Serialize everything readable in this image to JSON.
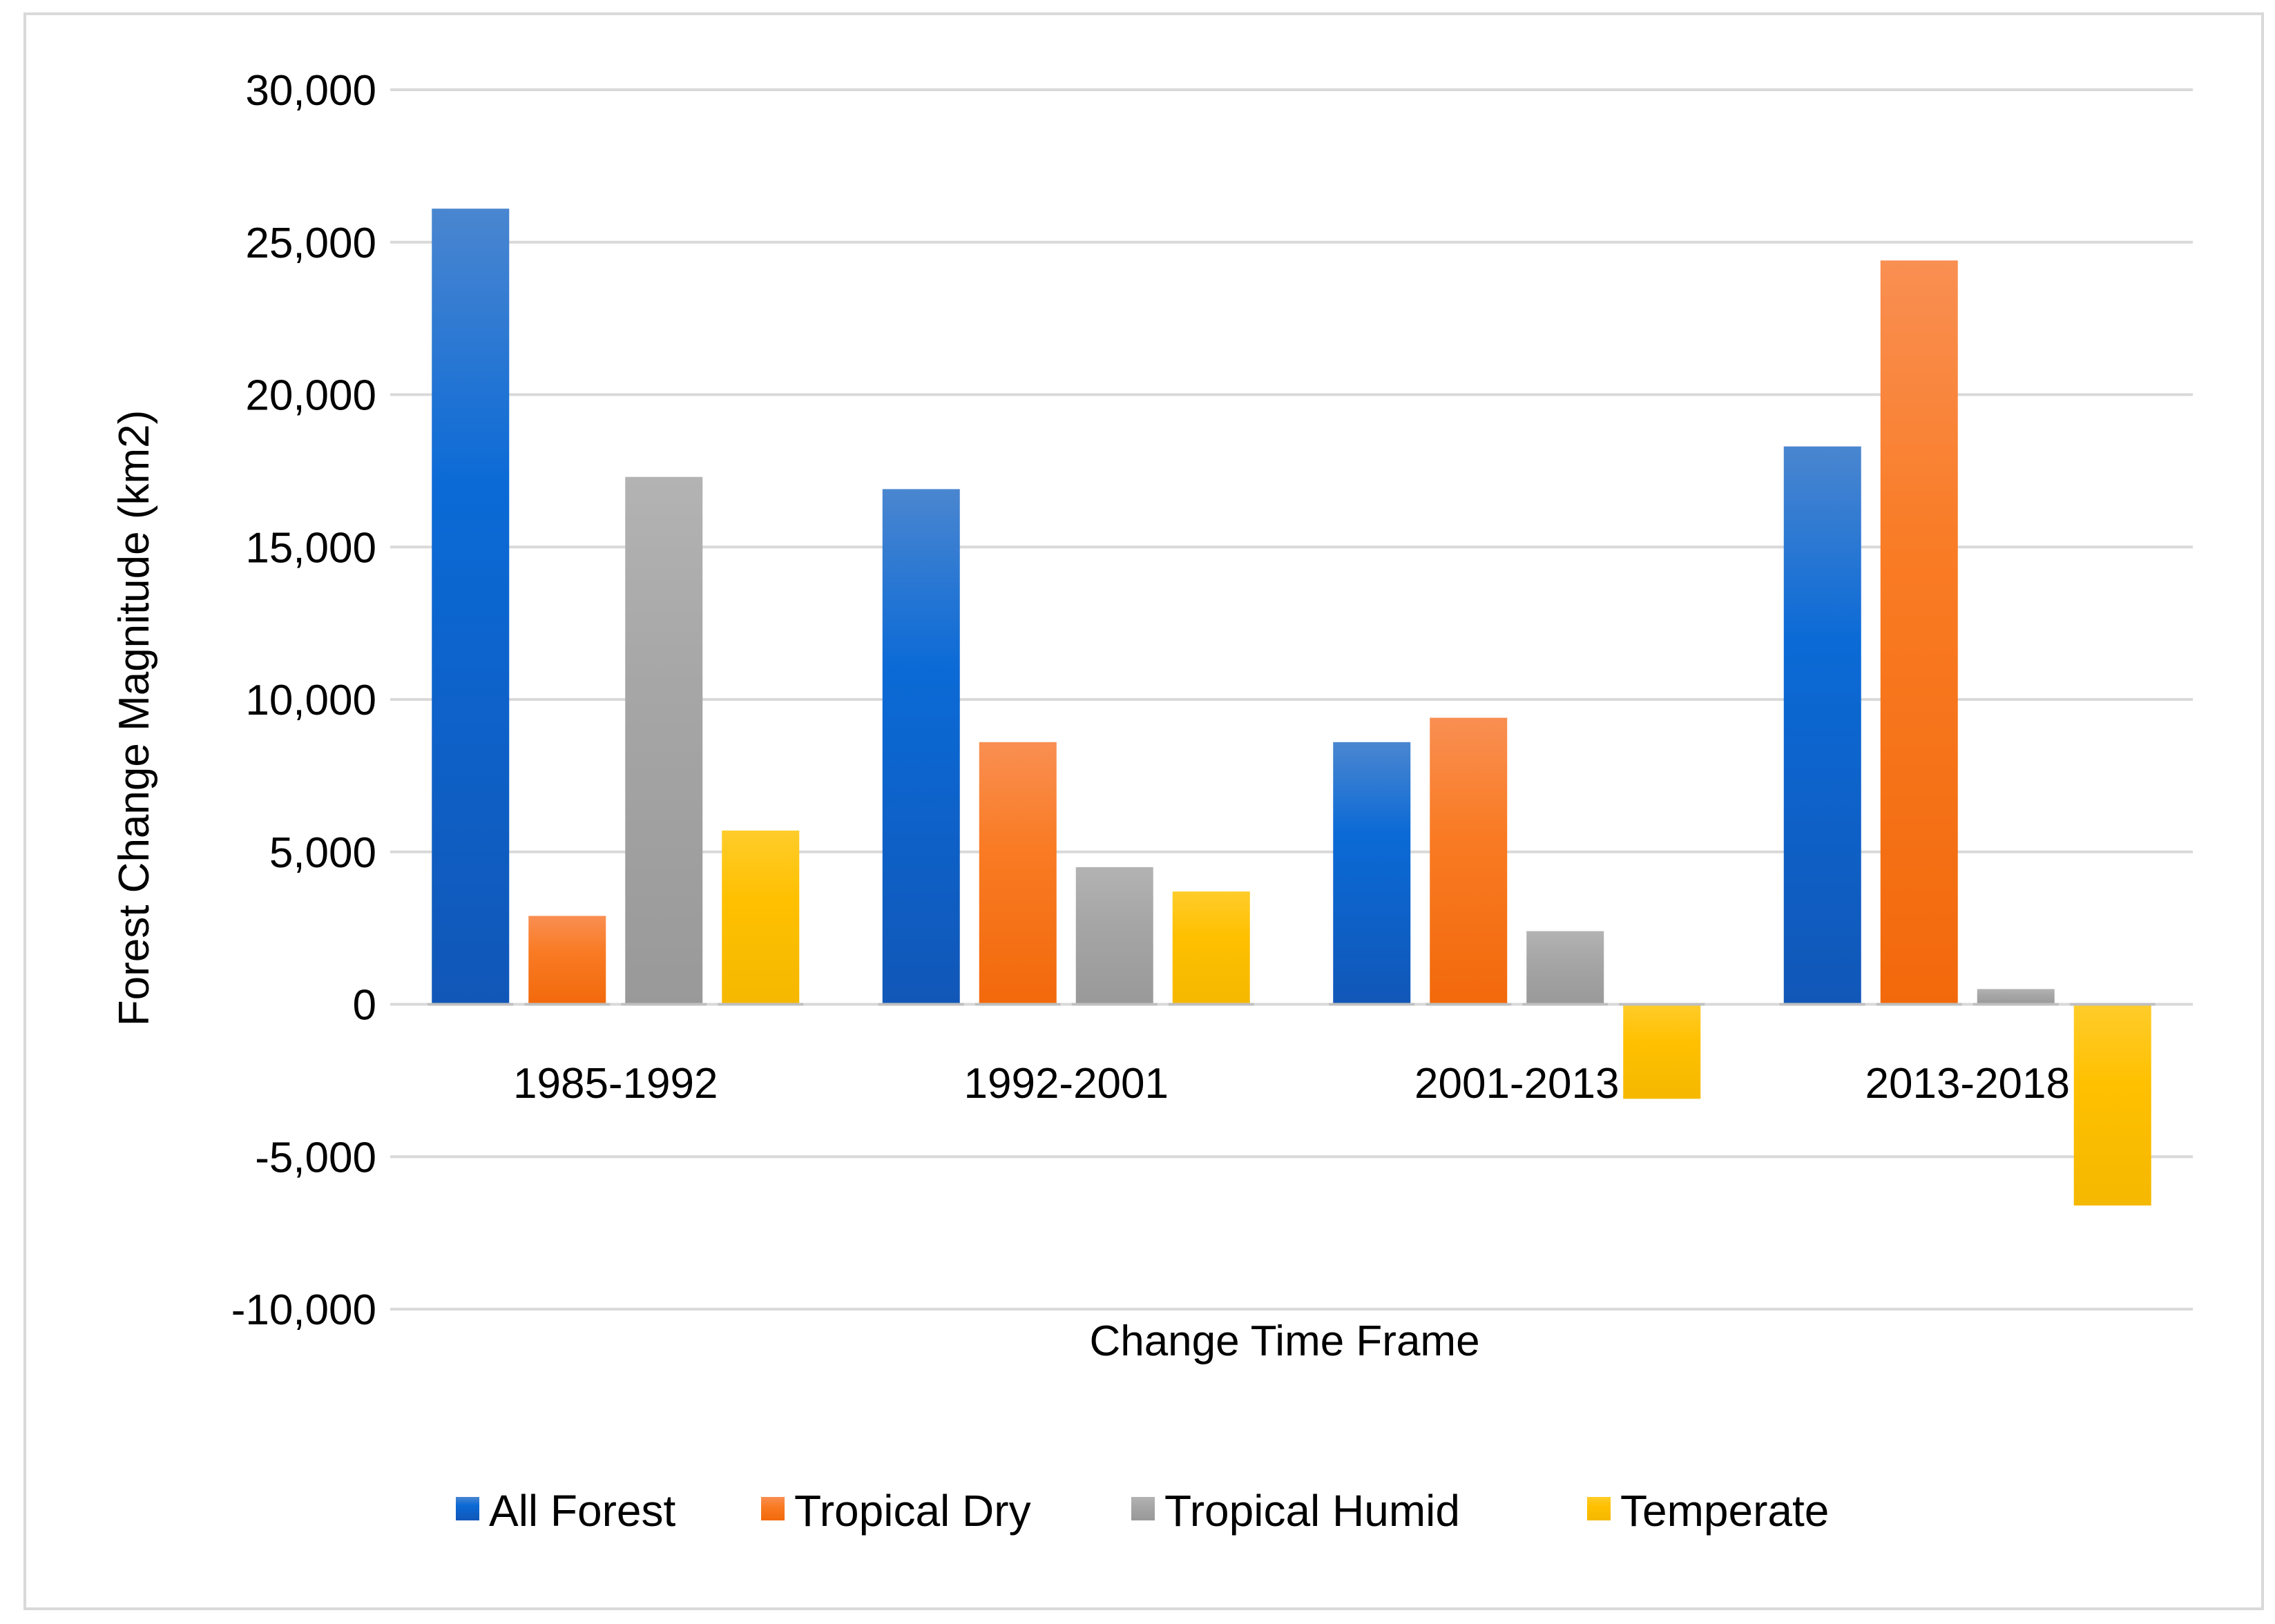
{
  "chart_data": {
    "type": "bar",
    "title": "",
    "xlabel": "Change Time Frame",
    "ylabel": "Forest Change Magnitude (km2)",
    "ylim": [
      -10000,
      30000
    ],
    "y_ticks": [
      30000,
      25000,
      20000,
      15000,
      10000,
      5000,
      0,
      -5000,
      -10000
    ],
    "y_tick_labels": [
      "30,000",
      "25,000",
      "20,000",
      "15,000",
      "10,000",
      "5,000",
      "0",
      "-5,000",
      "-10,000"
    ],
    "categories": [
      "1985-1992",
      "1992-2001",
      "2001-2013",
      "2013-2018"
    ],
    "series": [
      {
        "name": "All Forest",
        "color": "#1565c8",
        "values": [
          26100,
          16900,
          8600,
          18300
        ]
      },
      {
        "name": "Tropical Dry",
        "color": "#f97b24",
        "values": [
          2900,
          8600,
          9400,
          24400
        ]
      },
      {
        "name": "Tropical Humid",
        "color": "#a6a6a6",
        "values": [
          17300,
          4500,
          2400,
          500
        ]
      },
      {
        "name": "Temperate",
        "color": "#ffc000",
        "values": [
          5700,
          3700,
          -3100,
          -6600
        ]
      }
    ],
    "grid": true,
    "legend_position": "bottom"
  }
}
